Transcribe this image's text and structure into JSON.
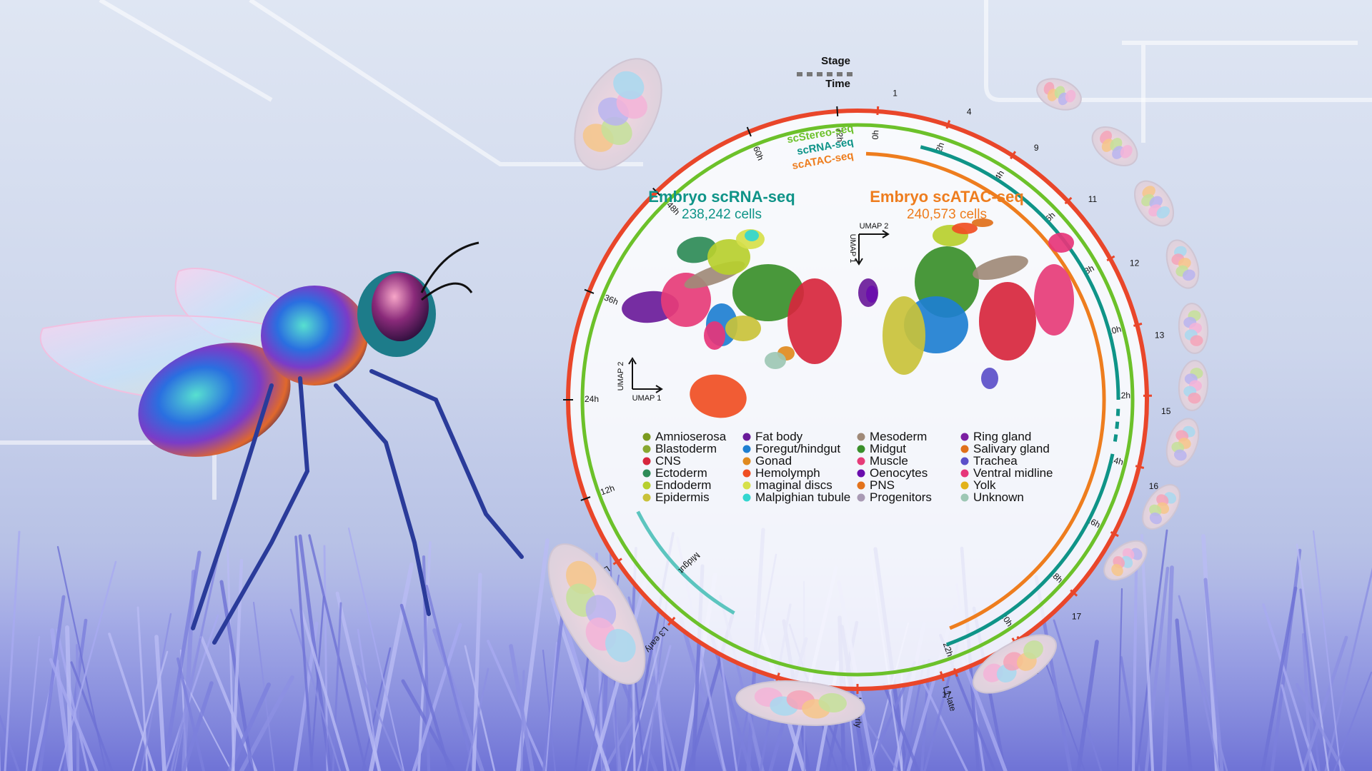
{
  "ring_labels": {
    "stage": "Stage",
    "time": "Time"
  },
  "assays": [
    {
      "name": "scStereo-seq",
      "color": "#6cc12a"
    },
    {
      "name": "scRNA-seq",
      "color": "#0f9488"
    },
    {
      "name": "scATAC-seq",
      "color": "#ee7d1e"
    }
  ],
  "colors": {
    "time_ring": "#e9462a",
    "stereo": "#6cc12a",
    "rna": "#0f9488",
    "atac": "#ee7d1e",
    "larval_bracket": "#5cc5bf"
  },
  "embryo_panels": {
    "rna": {
      "title": "Embryo scRNA-seq",
      "count": "238,242 cells",
      "umap_x": "UMAP 1",
      "umap_y": "UMAP 2"
    },
    "atac": {
      "title": "Embryo scATAC-seq",
      "count": "240,573 cells",
      "umap_x": "UMAP 2",
      "umap_y": "UMAP 1"
    }
  },
  "time_ticks": [
    "0h",
    "2h",
    "4h",
    "6h",
    "8h",
    "10h",
    "12h",
    "14h",
    "16h",
    "18h",
    "20h",
    "22h"
  ],
  "stage_ticks": [
    "1",
    "4",
    "9",
    "11",
    "12",
    "13",
    "15",
    "16",
    "17",
    "17",
    "17",
    "17"
  ],
  "left_time_ticks": [
    "12h",
    "24h",
    "36h",
    "48h",
    "60h",
    "72h"
  ],
  "larval_stages": [
    "L1 early",
    "L1 late",
    "L2 early",
    "L2 late",
    "L3 early",
    "L3 late"
  ],
  "bracket_label": "Midgut",
  "legend": [
    {
      "label": "Amnioserosa",
      "color": "#7a9a1e"
    },
    {
      "label": "Blastoderm",
      "color": "#88a832"
    },
    {
      "label": "CNS",
      "color": "#d7263d"
    },
    {
      "label": "Ectoderm",
      "color": "#2e8b57"
    },
    {
      "label": "Endoderm",
      "color": "#b7cf2e"
    },
    {
      "label": "Epidermis",
      "color": "#c9c23a"
    },
    {
      "label": "Fat body",
      "color": "#6a1b9a"
    },
    {
      "label": "Foregut/hindgut",
      "color": "#1e7fd1"
    },
    {
      "label": "Gonad",
      "color": "#e08a1e"
    },
    {
      "label": "Hemolymph",
      "color": "#f04e23"
    },
    {
      "label": "Imaginal discs",
      "color": "#d6e04a"
    },
    {
      "label": "Malpighian tubule",
      "color": "#33d6d0"
    },
    {
      "label": "Mesoderm",
      "color": "#a08a78"
    },
    {
      "label": "Midgut",
      "color": "#3a8f2a"
    },
    {
      "label": "Muscle",
      "color": "#e63c78"
    },
    {
      "label": "Oenocytes",
      "color": "#6a0dad"
    },
    {
      "label": "PNS",
      "color": "#e3731c"
    },
    {
      "label": "Progenitors",
      "color": "#a99ab4"
    },
    {
      "label": "Ring gland",
      "color": "#7b1fa2"
    },
    {
      "label": "Salivary gland",
      "color": "#e0701a"
    },
    {
      "label": "Trachea",
      "color": "#5b4fc9"
    },
    {
      "label": "Ventral midline",
      "color": "#e6357a"
    },
    {
      "label": "Yolk",
      "color": "#e2b21a"
    },
    {
      "label": "Unknown",
      "color": "#9dc7b4"
    }
  ]
}
